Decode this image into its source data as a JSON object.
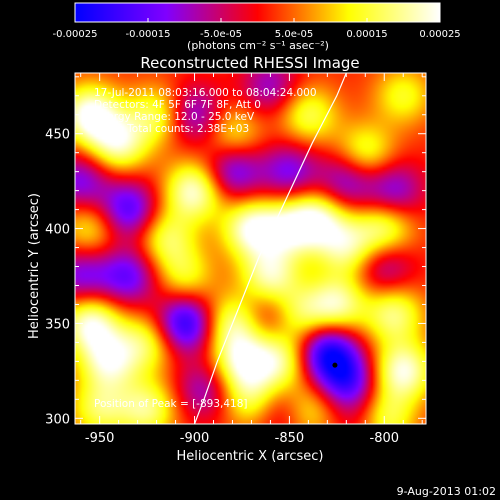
{
  "chart_data": {
    "type": "heatmap",
    "title": "Reconstructed RHESSI Image",
    "xlabel": "Heliocentric X (arcsec)",
    "ylabel": "Heliocentric Y (arcsec)",
    "xlim": [
      -963,
      -778
    ],
    "ylim": [
      297,
      482
    ],
    "xticks": [
      -950,
      -900,
      -850,
      -800
    ],
    "yticks": [
      300,
      350,
      400,
      450
    ],
    "colorbar": {
      "vmin": -0.00025,
      "vmax": 0.00025,
      "colormap": "sunset",
      "colors": [
        "#0000ff",
        "#8000ff",
        "#ff0000",
        "#ffff00",
        "#ffffff"
      ],
      "tick_labels": [
        "-0.00025",
        "-0.00015",
        "-5.0e-05",
        "5.0e-05",
        "0.00015",
        "0.00025"
      ],
      "tick_values": [
        -0.00025,
        -0.00015,
        -5e-05,
        5e-05,
        0.00015,
        0.00025
      ],
      "unit_label": "(photons cm⁻² s⁻¹ asec⁻²)"
    },
    "annotations": [
      "17-Jul-2011 08:03:16.000 to 08:04:24.000",
      "Detectors: 4F 5F 6F 7F 8F, Att 0",
      "Energy Range: 12.0 - 25.0 keV",
      "Clean    Total counts: 2.38E+03"
    ],
    "peak_label": "Position of Peak = [-893,418]",
    "peak": [
      -893,
      418
    ],
    "minimum_marker": [
      -826,
      328
    ],
    "limb": [
      [
        -900,
        297
      ],
      [
        -895,
        310
      ],
      [
        -888,
        330
      ],
      [
        -878,
        355
      ],
      [
        -866,
        385
      ],
      [
        -852,
        415
      ],
      [
        -838,
        445
      ],
      [
        -825,
        470
      ],
      [
        -820,
        482
      ]
    ],
    "blobs": [
      {
        "x": -955,
        "y": 460,
        "v": 1.0
      },
      {
        "x": -940,
        "y": 445,
        "v": 0.8
      },
      {
        "x": -920,
        "y": 460,
        "v": 0.6
      },
      {
        "x": -900,
        "y": 420,
        "v": 0.9
      },
      {
        "x": -880,
        "y": 450,
        "v": 0.5
      },
      {
        "x": -870,
        "y": 400,
        "v": 0.9
      },
      {
        "x": -860,
        "y": 375,
        "v": 0.8
      },
      {
        "x": -850,
        "y": 400,
        "v": 0.7
      },
      {
        "x": -835,
        "y": 405,
        "v": 0.8
      },
      {
        "x": -820,
        "y": 390,
        "v": 0.7
      },
      {
        "x": -800,
        "y": 400,
        "v": 0.7
      },
      {
        "x": -810,
        "y": 440,
        "v": 0.6
      },
      {
        "x": -790,
        "y": 470,
        "v": 0.5
      },
      {
        "x": -840,
        "y": 460,
        "v": 0.6
      },
      {
        "x": -825,
        "y": 360,
        "v": 0.8
      },
      {
        "x": -795,
        "y": 355,
        "v": 0.7
      },
      {
        "x": -790,
        "y": 325,
        "v": 0.9
      },
      {
        "x": -800,
        "y": 300,
        "v": 0.7
      },
      {
        "x": -855,
        "y": 330,
        "v": 0.7
      },
      {
        "x": -875,
        "y": 330,
        "v": 0.8
      },
      {
        "x": -880,
        "y": 350,
        "v": 0.7
      },
      {
        "x": -845,
        "y": 355,
        "v": 0.6
      },
      {
        "x": -840,
        "y": 305,
        "v": 0.5
      },
      {
        "x": -955,
        "y": 350,
        "v": 0.9
      },
      {
        "x": -945,
        "y": 330,
        "v": 0.8
      },
      {
        "x": -950,
        "y": 305,
        "v": 0.6
      },
      {
        "x": -925,
        "y": 340,
        "v": 0.6
      },
      {
        "x": -925,
        "y": 305,
        "v": 0.7
      },
      {
        "x": -905,
        "y": 375,
        "v": 0.5
      },
      {
        "x": -955,
        "y": 400,
        "v": 0.5
      },
      {
        "x": -915,
        "y": 395,
        "v": 0.6
      },
      {
        "x": -870,
        "y": 310,
        "v": 0.6
      },
      {
        "x": -935,
        "y": 410,
        "v": -0.8
      },
      {
        "x": -905,
        "y": 350,
        "v": -1.0
      },
      {
        "x": -935,
        "y": 375,
        "v": -0.7
      },
      {
        "x": -830,
        "y": 335,
        "v": -1.0
      },
      {
        "x": -820,
        "y": 320,
        "v": -0.8
      },
      {
        "x": -880,
        "y": 430,
        "v": -0.7
      },
      {
        "x": -900,
        "y": 460,
        "v": -0.6
      },
      {
        "x": -860,
        "y": 475,
        "v": -0.5
      },
      {
        "x": -850,
        "y": 430,
        "v": -0.6
      },
      {
        "x": -820,
        "y": 425,
        "v": -0.6
      },
      {
        "x": -795,
        "y": 420,
        "v": -0.6
      },
      {
        "x": -800,
        "y": 380,
        "v": -0.5
      },
      {
        "x": -960,
        "y": 425,
        "v": -0.6
      },
      {
        "x": -960,
        "y": 375,
        "v": -0.6
      },
      {
        "x": -895,
        "y": 315,
        "v": -0.5
      },
      {
        "x": -860,
        "y": 355,
        "v": -0.4
      },
      {
        "x": -810,
        "y": 300,
        "v": -0.3
      },
      {
        "x": -855,
        "y": 305,
        "v": -0.4
      }
    ]
  },
  "footer_date": "9-Aug-2013 01:02"
}
